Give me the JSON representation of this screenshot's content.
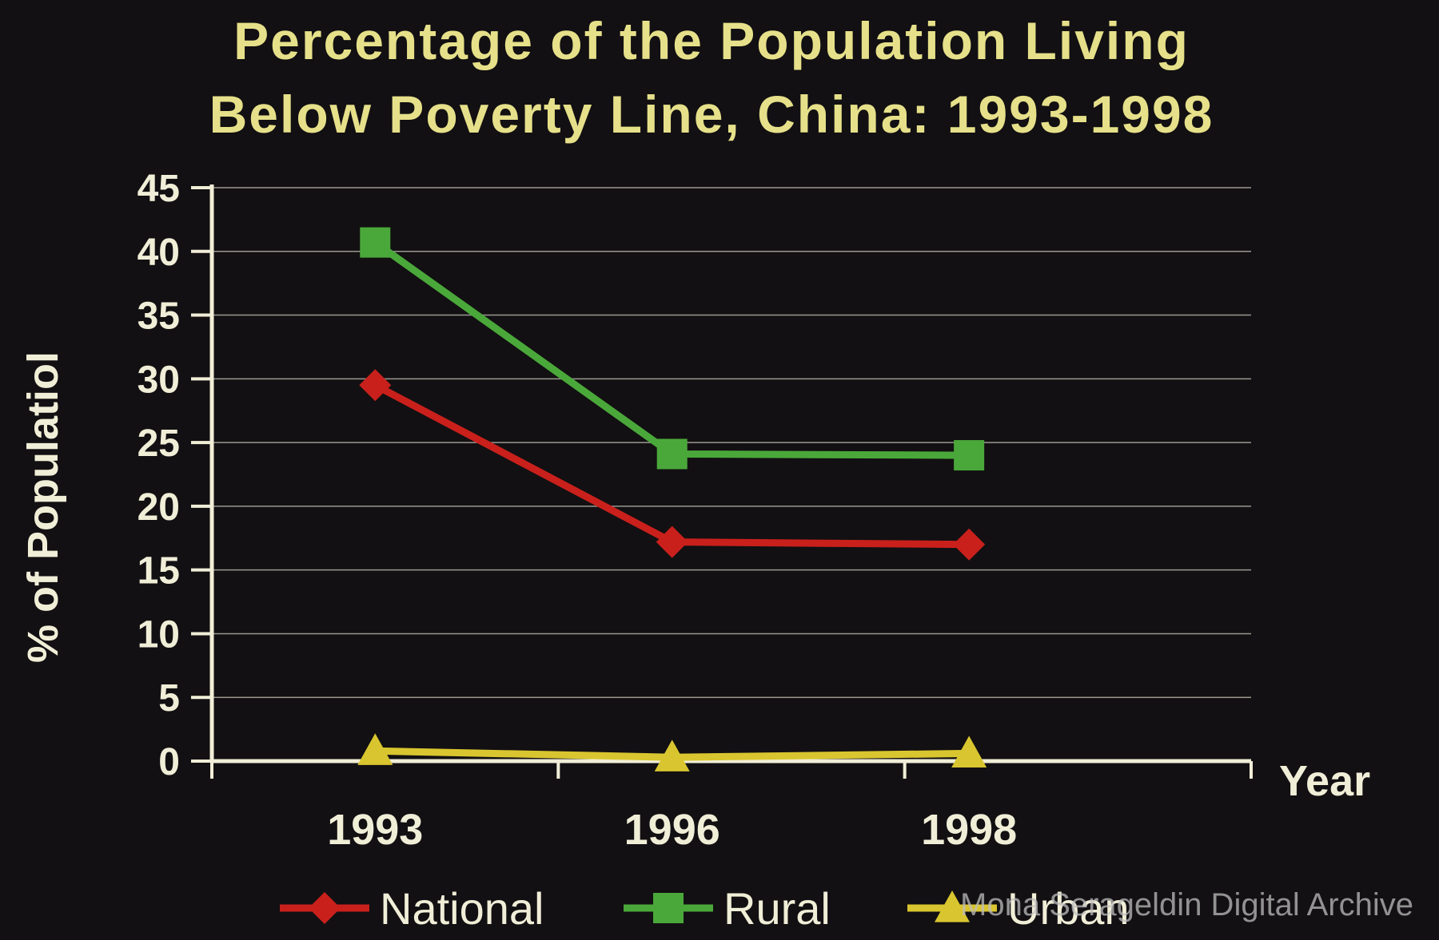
{
  "chart_data": {
    "type": "line",
    "title_lines": [
      "Percentage of the Population Living",
      "Below Poverty Line, China: 1993-1998"
    ],
    "xlabel": "Year",
    "ylabel": "% of Populatiol",
    "categories": [
      "1993",
      "1996",
      "1998"
    ],
    "yticks": [
      "0",
      "5",
      "10",
      "15",
      "20",
      "25",
      "30",
      "35",
      "40",
      "45"
    ],
    "ylim": [
      0,
      45
    ],
    "grid": true,
    "legend_position": "bottom",
    "series": [
      {
        "name": "National",
        "values": [
          29.5,
          17.2,
          17.0
        ],
        "color": "#c9201c",
        "marker": "diamond"
      },
      {
        "name": "Rural",
        "values": [
          40.7,
          24.1,
          24.0
        ],
        "color": "#4aa83a",
        "marker": "square"
      },
      {
        "name": "Urban",
        "values": [
          0.8,
          0.3,
          0.6
        ],
        "color": "#d9c52f",
        "marker": "triangle"
      }
    ]
  },
  "watermark": "Mona Serageldin Digital Archive"
}
